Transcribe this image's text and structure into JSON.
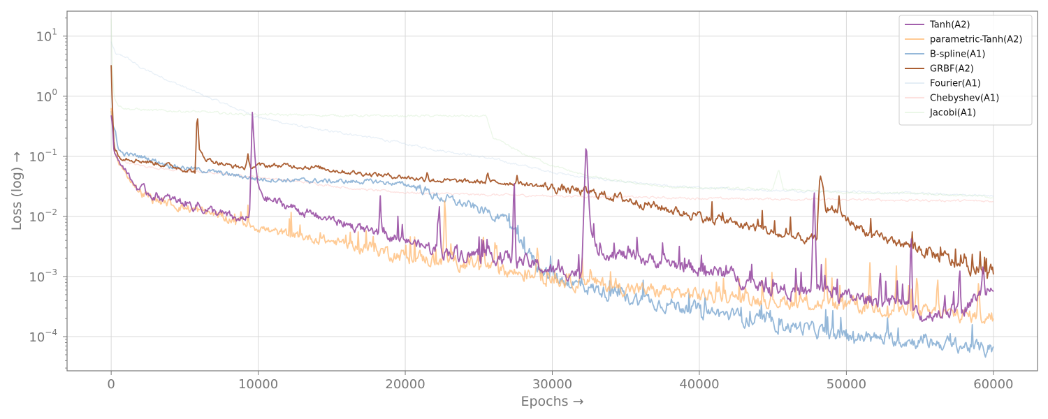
{
  "chart_data": {
    "type": "line",
    "title": "",
    "xlabel": "Epochs →",
    "ylabel": "Loss (log) →",
    "xlim": [
      -3000,
      63000
    ],
    "ylim": [
      2.7e-05,
      26
    ],
    "yscale": "log",
    "xticks": [
      0,
      10000,
      20000,
      30000,
      40000,
      50000,
      60000
    ],
    "xtick_labels": [
      "0",
      "10000",
      "20000",
      "30000",
      "40000",
      "50000",
      "60000"
    ],
    "yticks": [
      0.0001,
      0.001,
      0.01,
      0.1,
      1,
      10
    ],
    "ytick_labels": [
      "10",
      "10",
      "10",
      "10",
      "10",
      "10"
    ],
    "ytick_exponents": [
      "−4",
      "−3",
      "−2",
      "−1",
      "0",
      "1"
    ],
    "grid": true,
    "legend_position": "top-right",
    "series": [
      {
        "name": "Tanh(A2)",
        "color": "#984ea3",
        "opacity": 0.9,
        "width": 1.8,
        "points": [
          [
            0,
            0.5
          ],
          [
            100,
            0.3
          ],
          [
            200,
            0.12
          ],
          [
            500,
            0.08
          ],
          [
            1000,
            0.06
          ],
          [
            1500,
            0.035
          ],
          [
            2000,
            0.028
          ],
          [
            3000,
            0.022
          ],
          [
            4000,
            0.019
          ],
          [
            5000,
            0.017
          ],
          [
            6000,
            0.014
          ],
          [
            7000,
            0.012
          ],
          [
            8000,
            0.01
          ],
          [
            9000,
            0.0088
          ],
          [
            9400,
            0.009
          ],
          [
            9600,
            0.5
          ],
          [
            9800,
            0.08
          ],
          [
            10000,
            0.03
          ],
          [
            10500,
            0.02
          ],
          [
            12000,
            0.015
          ],
          [
            14000,
            0.01
          ],
          [
            16000,
            0.0075
          ],
          [
            18000,
            0.005
          ],
          [
            20000,
            0.004
          ],
          [
            22000,
            0.0028
          ],
          [
            24000,
            0.0024
          ],
          [
            26000,
            0.0022
          ],
          [
            28000,
            0.0018
          ],
          [
            29000,
            0.0015
          ],
          [
            30000,
            0.0012
          ],
          [
            32000,
            0.0012
          ],
          [
            32300,
            0.2
          ],
          [
            32600,
            0.006
          ],
          [
            33000,
            0.0028
          ],
          [
            35000,
            0.0022
          ],
          [
            38000,
            0.0017
          ],
          [
            40000,
            0.0013
          ],
          [
            42000,
            0.0011
          ],
          [
            44000,
            0.0007
          ],
          [
            46000,
            0.0006
          ],
          [
            47600,
            0.0005
          ],
          [
            47800,
            0.034
          ],
          [
            48000,
            0.0007
          ],
          [
            50000,
            0.00045
          ],
          [
            52000,
            0.0004
          ],
          [
            54000,
            0.00035
          ],
          [
            55000,
            0.0002
          ],
          [
            56000,
            0.00025
          ],
          [
            58000,
            0.0003
          ],
          [
            60000,
            0.0008
          ]
        ],
        "spikes": [
          [
            5900,
            0.018
          ],
          [
            18300,
            0.022
          ],
          [
            22300,
            0.024
          ],
          [
            27400,
            0.072
          ],
          [
            52300,
            0.0015
          ],
          [
            54400,
            0.009
          ],
          [
            57700,
            0.0018
          ],
          [
            59300,
            0.0019
          ]
        ]
      },
      {
        "name": "parametric-Tanh(A2)",
        "color": "#ffb870",
        "opacity": 0.75,
        "width": 1.8,
        "points": [
          [
            0,
            0.6
          ],
          [
            100,
            0.3
          ],
          [
            200,
            0.12
          ],
          [
            500,
            0.08
          ],
          [
            1000,
            0.05
          ],
          [
            2000,
            0.025
          ],
          [
            3000,
            0.019
          ],
          [
            5000,
            0.014
          ],
          [
            7000,
            0.011
          ],
          [
            9000,
            0.008
          ],
          [
            11000,
            0.0055
          ],
          [
            14000,
            0.0042
          ],
          [
            16000,
            0.0035
          ],
          [
            18000,
            0.0028
          ],
          [
            20000,
            0.0022
          ],
          [
            22000,
            0.0019
          ],
          [
            24000,
            0.0017
          ],
          [
            26000,
            0.0014
          ],
          [
            28000,
            0.0011
          ],
          [
            30000,
            0.0009
          ],
          [
            33000,
            0.00075
          ],
          [
            36000,
            0.0006
          ],
          [
            40000,
            0.0005
          ],
          [
            44000,
            0.00042
          ],
          [
            48000,
            0.00035
          ],
          [
            52000,
            0.0003
          ],
          [
            56000,
            0.00024
          ],
          [
            60000,
            0.00021
          ]
        ],
        "spikes": [
          [
            22700,
            0.032
          ],
          [
            25300,
            0.006
          ],
          [
            26200,
            0.004
          ],
          [
            29000,
            0.004
          ],
          [
            32600,
            0.0015
          ],
          [
            48600,
            0.002
          ],
          [
            51600,
            0.0017
          ],
          [
            53400,
            0.0015
          ],
          [
            54800,
            0.0013
          ],
          [
            56200,
            0.0012
          ],
          [
            59000,
            0.001
          ]
        ]
      },
      {
        "name": "B-spline(A1)",
        "color": "#7ba6d0",
        "opacity": 0.8,
        "width": 1.8,
        "points": [
          [
            0,
            0.55
          ],
          [
            100,
            0.3
          ],
          [
            300,
            0.25
          ],
          [
            500,
            0.13
          ],
          [
            800,
            0.11
          ],
          [
            2000,
            0.1
          ],
          [
            3000,
            0.085
          ],
          [
            4000,
            0.07
          ],
          [
            6000,
            0.06
          ],
          [
            8000,
            0.05
          ],
          [
            10000,
            0.042
          ],
          [
            12000,
            0.04
          ],
          [
            14000,
            0.039
          ],
          [
            16000,
            0.038
          ],
          [
            18000,
            0.038
          ],
          [
            20000,
            0.034
          ],
          [
            21000,
            0.03
          ],
          [
            22000,
            0.022
          ],
          [
            24000,
            0.016
          ],
          [
            26000,
            0.011
          ],
          [
            27000,
            0.008
          ],
          [
            28000,
            0.0035
          ],
          [
            29000,
            0.0015
          ],
          [
            30000,
            0.001
          ],
          [
            32000,
            0.0007
          ],
          [
            35000,
            0.00045
          ],
          [
            38000,
            0.00035
          ],
          [
            41000,
            0.00025
          ],
          [
            44000,
            0.00018
          ],
          [
            47000,
            0.00014
          ],
          [
            50000,
            0.0001
          ],
          [
            53000,
            9e-05
          ],
          [
            56000,
            8e-05
          ],
          [
            58000,
            7e-05
          ],
          [
            60000,
            5.8e-05
          ]
        ],
        "spikes": []
      },
      {
        "name": "GRBF(A2)",
        "color": "#a65628",
        "opacity": 0.95,
        "width": 1.8,
        "points": [
          [
            0,
            3.2
          ],
          [
            100,
            0.5
          ],
          [
            200,
            0.15
          ],
          [
            500,
            0.1
          ],
          [
            2000,
            0.085
          ],
          [
            4000,
            0.07
          ],
          [
            5700,
            0.055
          ],
          [
            5850,
            0.55
          ],
          [
            6000,
            0.12
          ],
          [
            6500,
            0.09
          ],
          [
            8000,
            0.07
          ],
          [
            9000,
            0.065
          ],
          [
            10000,
            0.07
          ],
          [
            12000,
            0.07
          ],
          [
            14000,
            0.065
          ],
          [
            16000,
            0.055
          ],
          [
            18000,
            0.05
          ],
          [
            20000,
            0.045
          ],
          [
            22000,
            0.04
          ],
          [
            24000,
            0.038
          ],
          [
            26000,
            0.037
          ],
          [
            28000,
            0.035
          ],
          [
            30000,
            0.03
          ],
          [
            32000,
            0.026
          ],
          [
            34000,
            0.022
          ],
          [
            36000,
            0.017
          ],
          [
            38000,
            0.013
          ],
          [
            40000,
            0.01
          ],
          [
            42000,
            0.008
          ],
          [
            44000,
            0.0065
          ],
          [
            46000,
            0.0045
          ],
          [
            48000,
            0.004
          ],
          [
            48200,
            0.05
          ],
          [
            48600,
            0.015
          ],
          [
            50000,
            0.009
          ],
          [
            52000,
            0.0045
          ],
          [
            54000,
            0.0035
          ],
          [
            56000,
            0.0023
          ],
          [
            58000,
            0.0015
          ],
          [
            60000,
            0.0012
          ]
        ],
        "spikes": [
          [
            9300,
            0.11
          ],
          [
            21500,
            0.058
          ],
          [
            25600,
            0.058
          ],
          [
            27600,
            0.048
          ],
          [
            49500,
            0.022
          ]
        ]
      },
      {
        "name": "Fourier(A1)",
        "color": "#b3cde3",
        "opacity": 0.3,
        "width": 1.3,
        "points": [
          [
            0,
            8
          ],
          [
            300,
            5
          ],
          [
            1000,
            4.5
          ],
          [
            2000,
            3
          ],
          [
            4000,
            1.8
          ],
          [
            6000,
            1.1
          ],
          [
            8000,
            0.7
          ],
          [
            10000,
            0.45
          ],
          [
            12000,
            0.35
          ],
          [
            14000,
            0.28
          ],
          [
            16000,
            0.24
          ],
          [
            18000,
            0.2
          ],
          [
            20000,
            0.16
          ],
          [
            22000,
            0.13
          ],
          [
            24000,
            0.11
          ],
          [
            26000,
            0.09
          ],
          [
            28000,
            0.07
          ],
          [
            30000,
            0.055
          ],
          [
            32000,
            0.045
          ],
          [
            34000,
            0.04
          ],
          [
            36000,
            0.035
          ],
          [
            38000,
            0.032
          ],
          [
            40000,
            0.03
          ],
          [
            45000,
            0.027
          ],
          [
            50000,
            0.026
          ],
          [
            55000,
            0.024
          ],
          [
            60000,
            0.022
          ]
        ],
        "spikes": []
      },
      {
        "name": "Chebyshev(A1)",
        "color": "#fbb4ae",
        "opacity": 0.4,
        "width": 1.3,
        "points": [
          [
            0,
            0.6
          ],
          [
            200,
            0.15
          ],
          [
            500,
            0.1
          ],
          [
            1000,
            0.08
          ],
          [
            2000,
            0.07
          ],
          [
            4000,
            0.06
          ],
          [
            6000,
            0.055
          ],
          [
            8000,
            0.05
          ],
          [
            10000,
            0.045
          ],
          [
            12000,
            0.04
          ],
          [
            14000,
            0.035
          ],
          [
            16000,
            0.03
          ],
          [
            18000,
            0.027
          ],
          [
            20000,
            0.025
          ],
          [
            22000,
            0.024
          ],
          [
            25000,
            0.023
          ],
          [
            30000,
            0.022
          ],
          [
            35000,
            0.021
          ],
          [
            40000,
            0.02
          ],
          [
            45000,
            0.0195
          ],
          [
            50000,
            0.019
          ],
          [
            55000,
            0.0185
          ],
          [
            60000,
            0.018
          ]
        ],
        "spikes": []
      },
      {
        "name": "Jacobi(A1)",
        "color": "#ccebc5",
        "opacity": 0.4,
        "width": 1.3,
        "points": [
          [
            0,
            20
          ],
          [
            80,
            3
          ],
          [
            200,
            1
          ],
          [
            500,
            0.7
          ],
          [
            1000,
            0.62
          ],
          [
            3000,
            0.58
          ],
          [
            6000,
            0.55
          ],
          [
            9000,
            0.5
          ],
          [
            12000,
            0.49
          ],
          [
            15000,
            0.48
          ],
          [
            18000,
            0.47
          ],
          [
            20000,
            0.47
          ],
          [
            24000,
            0.47
          ],
          [
            25500,
            0.46
          ],
          [
            26000,
            0.2
          ],
          [
            27000,
            0.15
          ],
          [
            28000,
            0.11
          ],
          [
            29000,
            0.09
          ],
          [
            30000,
            0.07
          ],
          [
            32000,
            0.05
          ],
          [
            34000,
            0.04
          ],
          [
            36000,
            0.035
          ],
          [
            38000,
            0.03
          ],
          [
            40000,
            0.03
          ],
          [
            45000,
            0.028
          ],
          [
            45400,
            0.06
          ],
          [
            45700,
            0.028
          ],
          [
            50000,
            0.025
          ],
          [
            55000,
            0.024
          ],
          [
            60000,
            0.021
          ]
        ],
        "spikes": []
      }
    ]
  }
}
